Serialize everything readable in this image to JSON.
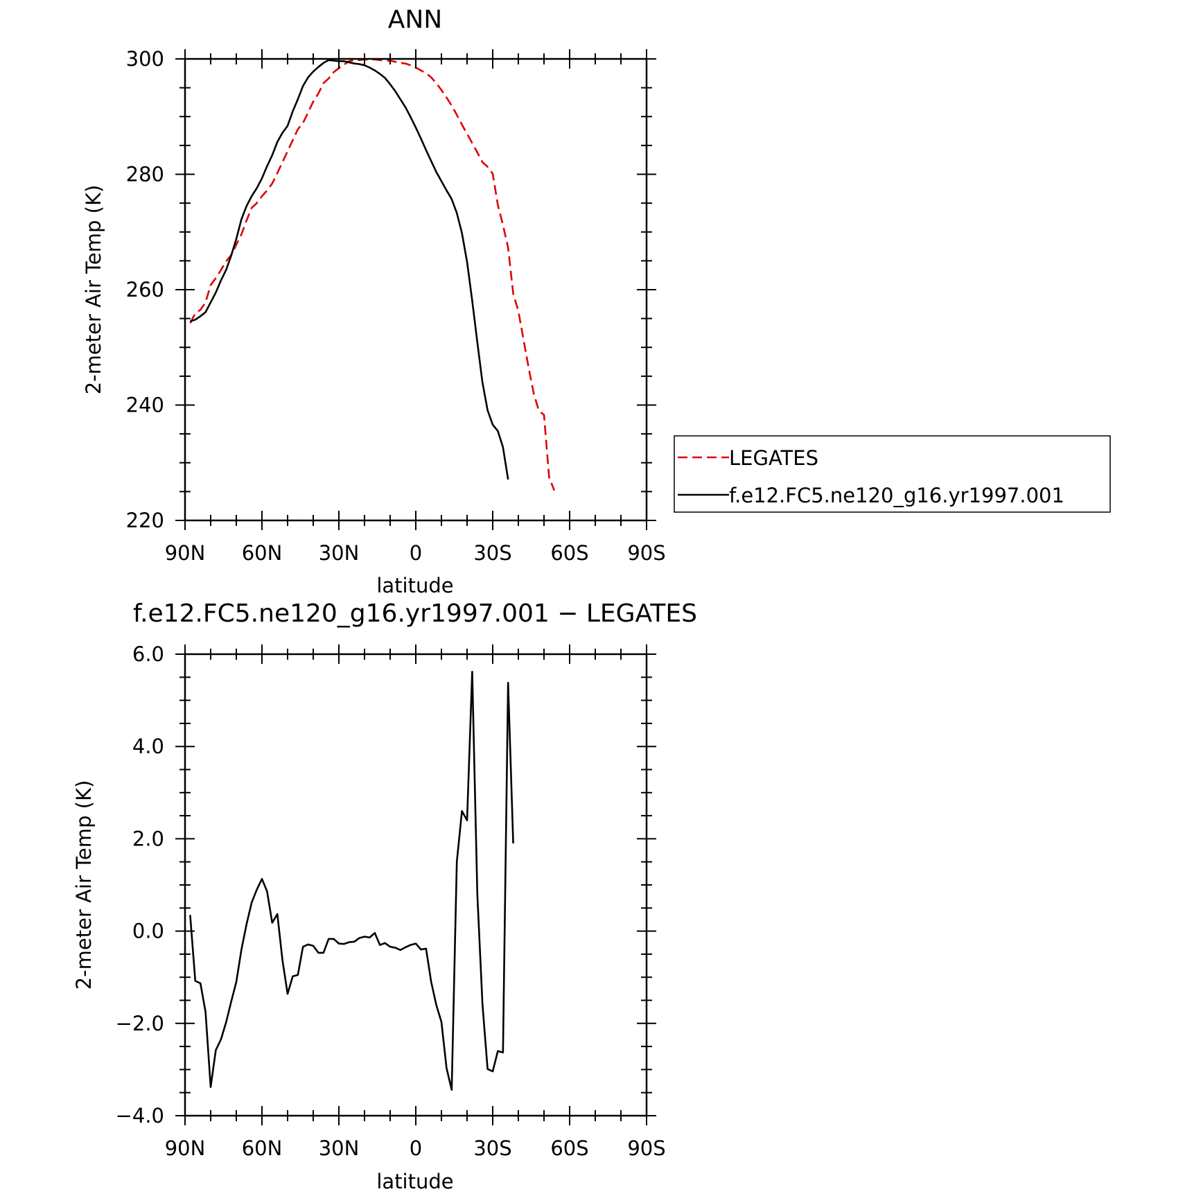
{
  "colors": {
    "background": "#ffffff",
    "axis": "#000000",
    "obs_line": "#e00000",
    "model_line": "#000000"
  },
  "chart_data": [
    {
      "type": "line",
      "title": "ANN",
      "xlabel": "latitude",
      "ylabel": "2-meter Air Temp (K)",
      "xlim": [
        90,
        -90
      ],
      "ylim": [
        220,
        300
      ],
      "xticks": [
        90,
        60,
        30,
        0,
        -30,
        -60,
        -90
      ],
      "xtick_labels": [
        "90N",
        "60N",
        "30N",
        "0",
        "30S",
        "60S",
        "90S"
      ],
      "yticks": [
        220,
        240,
        260,
        280,
        300
      ],
      "ytick_labels": [
        "220",
        "240",
        "260",
        "280",
        "300"
      ],
      "yminor_step": 5,
      "xminor_step": 10,
      "grid": false,
      "legend_position": "right",
      "series": [
        {
          "name": "LEGATES",
          "style": "dashed",
          "color": "#e00000",
          "points": [
            [
              88,
              254.2
            ],
            [
              86,
              255.9
            ],
            [
              84,
              256.5
            ],
            [
              82,
              257.8
            ],
            [
              80,
              260.8
            ],
            [
              78,
              262
            ],
            [
              76,
              263.4
            ],
            [
              74,
              264.9
            ],
            [
              72,
              266
            ],
            [
              70,
              267.8
            ],
            [
              68,
              269.6
            ],
            [
              66,
              272
            ],
            [
              64,
              274.2
            ],
            [
              62,
              275
            ],
            [
              60,
              276.2
            ],
            [
              58,
              277.2
            ],
            [
              56,
              278.4
            ],
            [
              54,
              280.2
            ],
            [
              52,
              282.1
            ],
            [
              50,
              284
            ],
            [
              48,
              285.9
            ],
            [
              46,
              287.8
            ],
            [
              44,
              288.9
            ],
            [
              42,
              290.7
            ],
            [
              40,
              292.6
            ],
            [
              38,
              294
            ],
            [
              36,
              295.8
            ],
            [
              34,
              296.6
            ],
            [
              32,
              297.7
            ],
            [
              30,
              298.4
            ],
            [
              28,
              299
            ],
            [
              26,
              299.6
            ],
            [
              24,
              299.8
            ],
            [
              22,
              299.8
            ],
            [
              20,
              299.9
            ],
            [
              18,
              299.9
            ],
            [
              16,
              299.9
            ],
            [
              14,
              299.8
            ],
            [
              12,
              299.7
            ],
            [
              10,
              299.7
            ],
            [
              8,
              299.5
            ],
            [
              6,
              299.3
            ],
            [
              4,
              299.2
            ],
            [
              2,
              298.9
            ],
            [
              0,
              298.5
            ],
            [
              -2,
              298
            ],
            [
              -4,
              297.5
            ],
            [
              -6,
              296.8
            ],
            [
              -8,
              295.8
            ],
            [
              -10,
              294.6
            ],
            [
              -12,
              293.3
            ],
            [
              -14,
              291.9
            ],
            [
              -16,
              290.3
            ],
            [
              -18,
              288.6
            ],
            [
              -20,
              287
            ],
            [
              -22,
              285.4
            ],
            [
              -24,
              283.8
            ],
            [
              -26,
              282.1
            ],
            [
              -28,
              281.3
            ],
            [
              -30,
              280.1
            ],
            [
              -32,
              274.7
            ],
            [
              -34,
              271.2
            ],
            [
              -36,
              267.3
            ],
            [
              -38,
              259.3
            ],
            [
              -40,
              256.3
            ],
            [
              -42,
              251.4
            ],
            [
              -44,
              246.5
            ],
            [
              -46,
              242
            ],
            [
              -48,
              239
            ],
            [
              -50,
              238.3
            ],
            [
              -52,
              227.5
            ],
            [
              -54,
              225.2
            ]
          ]
        },
        {
          "name": "f.e12.FC5.ne120_g16.yr1997.001",
          "style": "solid",
          "color": "#000000",
          "points": [
            [
              88,
              254.5
            ],
            [
              86,
              254.8
            ],
            [
              84,
              255.4
            ],
            [
              82,
              256.1
            ],
            [
              80,
              257.8
            ],
            [
              78,
              259.5
            ],
            [
              76,
              261.6
            ],
            [
              74,
              263.4
            ],
            [
              72,
              265.9
            ],
            [
              70,
              268.8
            ],
            [
              68,
              272.2
            ],
            [
              66,
              274.5
            ],
            [
              64,
              276.2
            ],
            [
              62,
              277.6
            ],
            [
              60,
              279.3
            ],
            [
              58,
              281.4
            ],
            [
              56,
              283.3
            ],
            [
              54,
              285.6
            ],
            [
              52,
              287.2
            ],
            [
              50,
              288.4
            ],
            [
              48,
              290.9
            ],
            [
              46,
              293
            ],
            [
              44,
              295.3
            ],
            [
              42,
              296.8
            ],
            [
              40,
              297.8
            ],
            [
              38,
              298.6
            ],
            [
              36,
              299.3
            ],
            [
              34,
              299.8
            ],
            [
              32,
              299.7
            ],
            [
              30,
              299.6
            ],
            [
              28,
              299.6
            ],
            [
              26,
              299.4
            ],
            [
              24,
              299.2
            ],
            [
              22,
              299.1
            ],
            [
              20,
              298.9
            ],
            [
              18,
              298.5
            ],
            [
              16,
              298
            ],
            [
              14,
              297.4
            ],
            [
              12,
              296.7
            ],
            [
              10,
              295.6
            ],
            [
              8,
              294.4
            ],
            [
              6,
              293
            ],
            [
              4,
              291.6
            ],
            [
              2,
              289.9
            ],
            [
              0,
              288.1
            ],
            [
              -2,
              286.2
            ],
            [
              -4,
              284.2
            ],
            [
              -6,
              282.3
            ],
            [
              -8,
              280.4
            ],
            [
              -10,
              278.8
            ],
            [
              -12,
              277.2
            ],
            [
              -14,
              275.7
            ],
            [
              -16,
              273.3
            ],
            [
              -18,
              269.8
            ],
            [
              -20,
              264.8
            ],
            [
              -22,
              258.1
            ],
            [
              -24,
              250.9
            ],
            [
              -26,
              243.9
            ],
            [
              -28,
              239.1
            ],
            [
              -30,
              236.6
            ],
            [
              -32,
              235.5
            ],
            [
              -34,
              232.7
            ],
            [
              -36,
              227.1
            ]
          ]
        }
      ]
    },
    {
      "type": "line",
      "title": "f.e12.FC5.ne120_g16.yr1997.001 − LEGATES",
      "xlabel": "latitude",
      "ylabel": "2-meter Air Temp (K)",
      "xlim": [
        90,
        -90
      ],
      "ylim": [
        -4,
        6
      ],
      "xticks": [
        90,
        60,
        30,
        0,
        -30,
        -60,
        -90
      ],
      "xtick_labels": [
        "90N",
        "60N",
        "30N",
        "0",
        "30S",
        "60S",
        "90S"
      ],
      "yticks": [
        -4,
        -2,
        0,
        2,
        4,
        6
      ],
      "ytick_labels": [
        "−4.0",
        "−2.0",
        "0.0",
        "2.0",
        "4.0",
        "6.0"
      ],
      "yminor_step": 0.5,
      "xminor_step": 10,
      "grid": false,
      "series": [
        {
          "style": "solid",
          "color": "#000000",
          "points": [
            [
              88,
              0.35
            ],
            [
              86,
              -1.08
            ],
            [
              84,
              -1.13
            ],
            [
              82,
              -1.75
            ],
            [
              80,
              -3.38
            ],
            [
              78,
              -2.58
            ],
            [
              76,
              -2.35
            ],
            [
              74,
              -1.98
            ],
            [
              72,
              -1.53
            ],
            [
              70,
              -1.1
            ],
            [
              68,
              -0.4
            ],
            [
              66,
              0.15
            ],
            [
              64,
              0.62
            ],
            [
              62,
              0.9
            ],
            [
              60,
              1.13
            ],
            [
              58,
              0.86
            ],
            [
              56,
              0.18
            ],
            [
              54,
              0.37
            ],
            [
              52,
              -0.63
            ],
            [
              50,
              -1.36
            ],
            [
              48,
              -0.98
            ],
            [
              46,
              -0.95
            ],
            [
              44,
              -0.34
            ],
            [
              42,
              -0.29
            ],
            [
              40,
              -0.32
            ],
            [
              38,
              -0.47
            ],
            [
              36,
              -0.47
            ],
            [
              34,
              -0.17
            ],
            [
              32,
              -0.17
            ],
            [
              30,
              -0.27
            ],
            [
              28,
              -0.28
            ],
            [
              26,
              -0.24
            ],
            [
              24,
              -0.23
            ],
            [
              22,
              -0.15
            ],
            [
              20,
              -0.12
            ],
            [
              18,
              -0.14
            ],
            [
              16,
              -0.04
            ],
            [
              14,
              -0.3
            ],
            [
              12,
              -0.26
            ],
            [
              10,
              -0.34
            ],
            [
              8,
              -0.36
            ],
            [
              6,
              -0.41
            ],
            [
              4,
              -0.35
            ],
            [
              2,
              -0.3
            ],
            [
              0,
              -0.27
            ],
            [
              -2,
              -0.4
            ],
            [
              -4,
              -0.38
            ],
            [
              -6,
              -1.1
            ],
            [
              -8,
              -1.6
            ],
            [
              -10,
              -1.97
            ],
            [
              -12,
              -2.97
            ],
            [
              -14,
              -3.44
            ],
            [
              -16,
              1.5
            ],
            [
              -18,
              2.6
            ],
            [
              -20,
              2.4
            ],
            [
              -22,
              5.62
            ],
            [
              -24,
              0.8
            ],
            [
              -26,
              -1.58
            ],
            [
              -28,
              -2.99
            ],
            [
              -30,
              -3.04
            ],
            [
              -32,
              -2.6
            ],
            [
              -34,
              -2.63
            ],
            [
              -36,
              5.38
            ],
            [
              -38,
              1.9
            ]
          ]
        }
      ]
    }
  ]
}
